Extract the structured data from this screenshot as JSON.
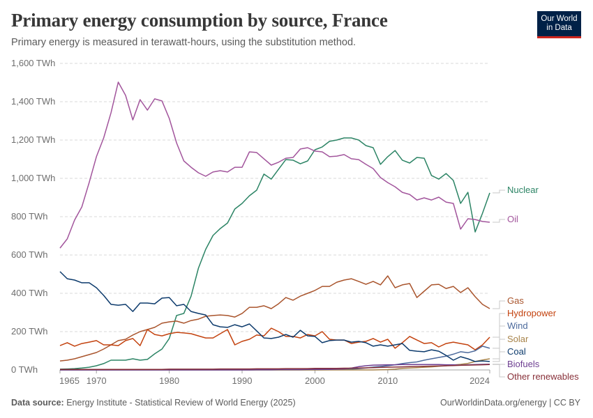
{
  "header": {
    "title": "Primary energy consumption by source, France",
    "subtitle": "Primary energy is measured in terawatt-hours, using the substitution method.",
    "logo_line1": "Our World",
    "logo_line2": "in Data"
  },
  "footer": {
    "source_label": "Data source:",
    "source_text": "Energy Institute - Statistical Review of World Energy (2025)",
    "right": "OurWorldinData.org/energy | CC BY"
  },
  "chart_data": {
    "type": "line",
    "title": "Primary energy consumption by source, France",
    "ylabel": "",
    "xlabel": "",
    "xlim": [
      1965,
      2024
    ],
    "ylim": [
      0,
      1600
    ],
    "grid": true,
    "legend": "right (inline labels at line ends)",
    "x_ticks": [
      "1965",
      "1970",
      "1980",
      "1990",
      "2000",
      "2010",
      "2024"
    ],
    "x_tick_values": [
      1965,
      1970,
      1980,
      1990,
      2000,
      2010,
      2024
    ],
    "y_ticks": [
      "0 TWh",
      "200 TWh",
      "400 TWh",
      "600 TWh",
      "800 TWh",
      "1,000 TWh",
      "1,200 TWh",
      "1,400 TWh",
      "1,600 TWh"
    ],
    "y_tick_values": [
      0,
      200,
      400,
      600,
      800,
      1000,
      1200,
      1400,
      1600
    ],
    "x_start": 1965,
    "series": [
      {
        "name": "Nuclear",
        "color": "#2c8465",
        "values": [
          4,
          5,
          7,
          10,
          14,
          22,
          33,
          51,
          51,
          51,
          58,
          51,
          55,
          84,
          109,
          164,
          284,
          295,
          385,
          531,
          629,
          702,
          738,
          767,
          840,
          869,
          909,
          938,
          1022,
          996,
          1047,
          1098,
          1095,
          1076,
          1091,
          1149,
          1164,
          1193,
          1200,
          1211,
          1211,
          1200,
          1171,
          1160,
          1073,
          1113,
          1145,
          1095,
          1080,
          1109,
          1105,
          1015,
          996,
          1025,
          989,
          869,
          927,
          720,
          818,
          924
        ]
      },
      {
        "name": "Oil",
        "color": "#a2559c",
        "values": [
          636,
          684,
          782,
          851,
          978,
          1113,
          1211,
          1342,
          1502,
          1433,
          1305,
          1411,
          1356,
          1415,
          1404,
          1313,
          1185,
          1091,
          1058,
          1029,
          1011,
          1033,
          1040,
          1033,
          1058,
          1058,
          1138,
          1135,
          1102,
          1069,
          1084,
          1105,
          1109,
          1153,
          1160,
          1142,
          1138,
          1113,
          1116,
          1124,
          1102,
          1098,
          1073,
          1051,
          1004,
          978,
          956,
          927,
          916,
          887,
          898,
          887,
          902,
          876,
          869,
          735,
          789,
          785,
          775,
          771
        ]
      },
      {
        "name": "Gas",
        "color": "#a9542c",
        "values": [
          47,
          51,
          58,
          69,
          80,
          91,
          109,
          131,
          153,
          160,
          182,
          200,
          211,
          222,
          244,
          251,
          255,
          244,
          258,
          265,
          280,
          284,
          287,
          284,
          276,
          295,
          327,
          327,
          335,
          320,
          345,
          378,
          364,
          385,
          400,
          415,
          436,
          436,
          458,
          469,
          476,
          462,
          447,
          462,
          444,
          491,
          429,
          444,
          451,
          378,
          411,
          444,
          447,
          425,
          436,
          404,
          429,
          382,
          342,
          320
        ]
      },
      {
        "name": "Hydropower",
        "color": "#c3420e",
        "values": [
          127,
          142,
          124,
          138,
          145,
          153,
          131,
          131,
          127,
          153,
          164,
          127,
          211,
          185,
          178,
          189,
          196,
          193,
          189,
          178,
          167,
          167,
          189,
          211,
          131,
          149,
          160,
          182,
          178,
          218,
          200,
          175,
          175,
          167,
          185,
          178,
          200,
          160,
          156,
          156,
          138,
          145,
          149,
          164,
          145,
          160,
          113,
          142,
          175,
          156,
          138,
          142,
          120,
          138,
          145,
          138,
          131,
          105,
          131,
          171
        ]
      },
      {
        "name": "Wind",
        "color": "#4c6a9c",
        "values": [
          0,
          0,
          0,
          0,
          0,
          0,
          0,
          0,
          0,
          0,
          0,
          0,
          0,
          0,
          0,
          0,
          0,
          0,
          0,
          0,
          0,
          0,
          0,
          0,
          0,
          0,
          0,
          0,
          0,
          0,
          0,
          0,
          0,
          0,
          0,
          0,
          0.3,
          1,
          1,
          2,
          4,
          7,
          10,
          15,
          18,
          22,
          27,
          33,
          38,
          42,
          51,
          58,
          65,
          72,
          82,
          95,
          90,
          100,
          124,
          113
        ]
      },
      {
        "name": "Solar",
        "color": "#a7834a",
        "values": [
          0,
          0,
          0,
          0,
          0,
          0,
          0,
          0,
          0,
          0,
          0,
          0,
          0,
          0,
          0,
          0,
          0,
          0,
          0,
          0,
          0,
          0,
          0,
          0,
          0,
          0,
          0,
          0,
          0,
          0,
          0,
          0,
          0,
          0,
          0,
          0,
          0,
          0,
          0,
          0,
          0,
          0,
          0,
          0,
          1,
          2,
          4,
          8,
          10,
          12,
          14,
          16,
          19,
          22,
          26,
          29,
          34,
          44,
          52,
          58
        ]
      },
      {
        "name": "Coal",
        "color": "#0c3a6c",
        "values": [
          513,
          476,
          469,
          455,
          455,
          429,
          389,
          342,
          338,
          342,
          305,
          349,
          349,
          345,
          375,
          378,
          335,
          342,
          305,
          295,
          287,
          236,
          225,
          222,
          236,
          225,
          240,
          204,
          167,
          164,
          171,
          185,
          171,
          207,
          178,
          175,
          142,
          153,
          156,
          156,
          145,
          149,
          142,
          124,
          131,
          124,
          131,
          138,
          102,
          98,
          95,
          105,
          98,
          76,
          51,
          69,
          58,
          44,
          47,
          44
        ]
      },
      {
        "name": "Biofuels",
        "color": "#6d3e91",
        "values": [
          0,
          0,
          0,
          0,
          0,
          0,
          0,
          0,
          0,
          0,
          0,
          0,
          0,
          0,
          0,
          0,
          0,
          0,
          0,
          0,
          0,
          0,
          0,
          0,
          0,
          0,
          0,
          1,
          1,
          1,
          2,
          2,
          2,
          2,
          3,
          3,
          3,
          3,
          4,
          5,
          10,
          17,
          22,
          25,
          26,
          27,
          27,
          28,
          28,
          28,
          28,
          28,
          28,
          27,
          27,
          25,
          27,
          28,
          29,
          30
        ]
      },
      {
        "name": "Other renewables",
        "color": "#883039",
        "values": [
          3,
          3,
          3,
          3,
          3,
          3,
          3,
          3,
          3,
          3,
          3,
          3,
          3,
          3,
          3,
          4,
          4,
          4,
          4,
          4,
          4,
          4,
          5,
          5,
          5,
          5,
          5,
          6,
          6,
          6,
          6,
          7,
          7,
          7,
          7,
          8,
          8,
          8,
          8,
          9,
          9,
          10,
          11,
          12,
          13,
          14,
          15,
          16,
          17,
          18,
          19,
          20,
          21,
          22,
          23,
          24,
          25,
          26,
          27,
          28
        ]
      }
    ]
  }
}
